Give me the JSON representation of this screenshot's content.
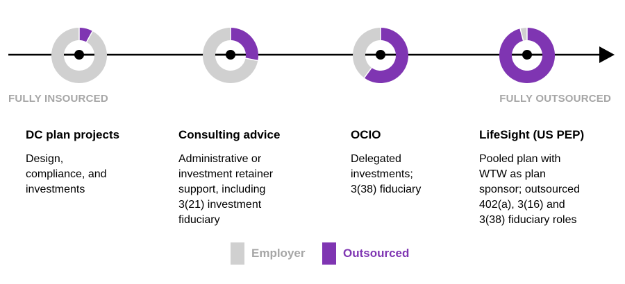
{
  "chart_data": {
    "type": "pie",
    "stages": [
      {
        "title": "DC plan projects",
        "description": "Design,\ncompliance, and\ninvestments",
        "employer": 92,
        "outsourced": 8
      },
      {
        "title": "Consulting advice",
        "description": "Administrative or\ninvestment retainer\nsupport, including\n3(21) investment\nfiduciary",
        "employer": 72,
        "outsourced": 28
      },
      {
        "title": "OCIO",
        "description": "Delegated\ninvestments;\n3(38) fiduciary",
        "employer": 40,
        "outsourced": 60
      },
      {
        "title": "LifeSight (US PEP)",
        "description": "Pooled plan with\nWTW as plan\nsponsor; outsourced\n402(a), 3(16) and\n3(38) fiduciary roles",
        "employer": 4,
        "outsourced": 96
      }
    ],
    "axis_start_label": "FULLY INSOURCED",
    "axis_end_label": "FULLY OUTSOURCED",
    "legend": [
      {
        "label": "Employer",
        "color": "#d0d0d0"
      },
      {
        "label": "Outsourced",
        "color": "#7f35b2"
      }
    ]
  }
}
